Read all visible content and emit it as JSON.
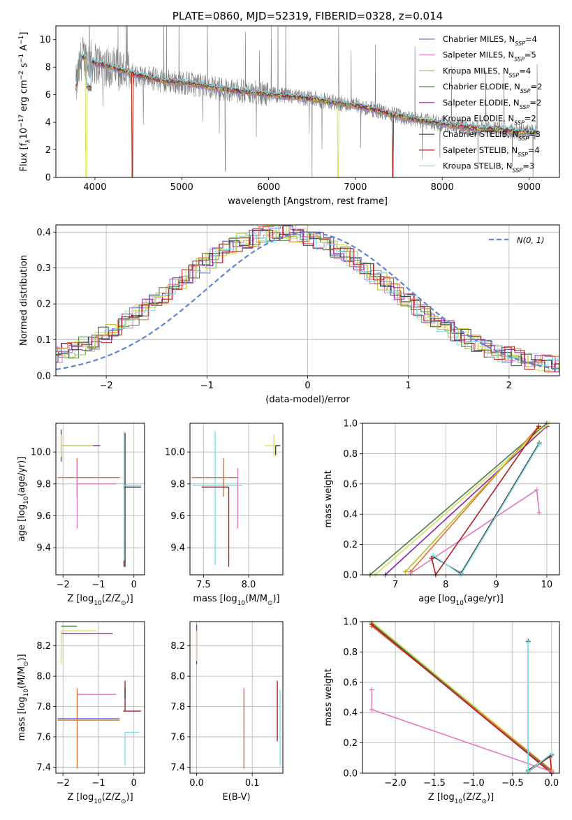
{
  "colors": {
    "chabrier_miles": "#6a7fd3",
    "salpeter_miles": "#e377c2",
    "kroupa_miles": "#bcbd22",
    "chabrier_elodie": "#4a7d4a",
    "salpeter_elodie": "#8e24aa",
    "kroupa_elodie": "#d4e157",
    "chabrier_stelib": "#404040",
    "salpeter_stelib": "#b71c1c",
    "kroupa_stelib": "#80deea",
    "orange": "#e07030",
    "data_gray": "#808080",
    "normal_dash": "#5b85d9"
  },
  "chart_data": [
    {
      "id": "spectrum",
      "type": "line",
      "title": "PLATE=0860, MJD=52319, FIBERID=0328, z=0.014",
      "xlabel": "wavelength [Angstrom, rest frame]",
      "ylabel_parts": {
        "a": "Flux [f",
        "sub1": "λ",
        "b": "10",
        "sup1": "−17",
        "c": " erg cm",
        "sup2": "−2",
        "d": " s",
        "sup3": "−1",
        "e": " A",
        "sup4": "−1",
        "f": "]"
      },
      "xlim": [
        3550,
        9350
      ],
      "ylim": [
        0,
        11
      ],
      "xticks": [
        4000,
        5000,
        6000,
        7000,
        8000,
        9000
      ],
      "yticks": [
        0,
        2,
        4,
        6,
        8,
        10
      ],
      "x_range_data": [
        3780,
        9100
      ],
      "grid": false,
      "legend_placement": "upper-right",
      "legend": [
        {
          "name": "Chabrier MILES, N",
          "sub": "SSP",
          "suffix": "=4",
          "color": "#6a7fd3"
        },
        {
          "name": "Salpeter MILES, N",
          "sub": "SSP",
          "suffix": "=5",
          "color": "#e377c2"
        },
        {
          "name": "Kroupa MILES, N",
          "sub": "SSP",
          "suffix": "=4",
          "color": "#bcbd22"
        },
        {
          "name": "Chabrier ELODIE, N",
          "sub": "SSP",
          "suffix": "=2",
          "color": "#4a7d4a"
        },
        {
          "name": "Salpeter ELODIE, N",
          "sub": "SSP",
          "suffix": "=2",
          "color": "#8e24aa"
        },
        {
          "name": "Kroupa ELODIE, N",
          "sub": "SSP",
          "suffix": "=2",
          "color": "#d4e157"
        },
        {
          "name": "Chabrier STELIB, N",
          "sub": "SSP",
          "suffix": "=3",
          "color": "#404040"
        },
        {
          "name": "Salpeter STELIB, N",
          "sub": "SSP",
          "suffix": "=4",
          "color": "#b71c1c"
        },
        {
          "name": "Kroupa STELIB, N",
          "sub": "SSP",
          "suffix": "=3",
          "color": "#80deea"
        }
      ],
      "continuum_points": [
        [
          3780,
          6.5
        ],
        [
          3850,
          8.8
        ],
        [
          4000,
          8.3
        ],
        [
          4200,
          8.0
        ],
        [
          4500,
          7.4
        ],
        [
          4800,
          7.0
        ],
        [
          5000,
          6.9
        ],
        [
          5300,
          6.6
        ],
        [
          5600,
          6.3
        ],
        [
          5900,
          6.1
        ],
        [
          6200,
          5.9
        ],
        [
          6500,
          5.7
        ],
        [
          6800,
          5.4
        ],
        [
          7100,
          5.1
        ],
        [
          7400,
          4.6
        ],
        [
          7700,
          4.2
        ],
        [
          8000,
          3.9
        ],
        [
          8300,
          3.6
        ],
        [
          8600,
          3.5
        ],
        [
          8900,
          3.3
        ],
        [
          9100,
          3.3
        ]
      ]
    },
    {
      "id": "residual-histogram",
      "type": "line",
      "xlabel": "(data-model)/error",
      "ylabel": "Normed distribution",
      "xlim": [
        -2.5,
        2.5
      ],
      "ylim": [
        0,
        0.42
      ],
      "xticks": [
        -2,
        -1,
        0,
        1,
        2
      ],
      "yticks": [
        0.0,
        0.1,
        0.2,
        0.3,
        0.4
      ],
      "grid": true,
      "legend_placement": "upper-right",
      "legend": [
        {
          "name": "N(0,1)",
          "color": "#5b85d9"
        }
      ],
      "normal_curve": {
        "mean": 0,
        "sigma": 1
      }
    },
    {
      "id": "age-vs-z",
      "type": "scatter",
      "xlabel_parts": {
        "a": "Z [log",
        "sub": "10",
        "b": "(Z/Z",
        "sub2": "⊙",
        "c": ")]"
      },
      "ylabel_parts": {
        "a": "age  [log",
        "sub": "10",
        "b": "(age/yr)]"
      },
      "xlim": [
        -2.2,
        0.3
      ],
      "ylim": [
        9.23,
        10.18
      ],
      "xticks": [
        -2,
        -1,
        0
      ],
      "yticks": [
        9.4,
        9.6,
        9.8,
        10.0
      ],
      "grid": true,
      "errorbars": [
        {
          "x": -2.05,
          "y": 10.04,
          "xerr": [
            0.0,
            1.1
          ],
          "yerr": [
            0.1,
            0.1
          ],
          "color": "#8e24aa"
        },
        {
          "x": -2.05,
          "y": 10.04,
          "xerr": [
            0.0,
            0.9
          ],
          "yerr": [
            0.07,
            0.07
          ],
          "color": "#d4e157"
        },
        {
          "x": -1.6,
          "y": 9.84,
          "xerr": [
            0.55,
            1.2
          ],
          "yerr": [
            0.12,
            0.12
          ],
          "color": "#e07030"
        },
        {
          "x": -1.6,
          "y": 9.8,
          "xerr": [
            0.0,
            1.1
          ],
          "yerr": [
            0.28,
            0.15
          ],
          "color": "#e377c2"
        },
        {
          "x": -0.25,
          "y": 9.78,
          "xerr": [
            0.05,
            0.45
          ],
          "yerr": [
            0.5,
            0.34
          ],
          "color": "#404040"
        },
        {
          "x": -0.28,
          "y": 9.79,
          "xerr": [
            0.0,
            0.5
          ],
          "yerr": [
            0.5,
            0.34
          ],
          "color": "#80deea"
        },
        {
          "x": -0.28,
          "y": 9.3,
          "xerr": [
            0.0,
            0.0
          ],
          "yerr": [
            0.02,
            0.02
          ],
          "color": "#b71c1c"
        }
      ]
    },
    {
      "id": "age-vs-mass",
      "type": "scatter",
      "xlabel_parts": {
        "a": "mass [log",
        "sub": "10",
        "b": "(M/M",
        "sub2": "⊙",
        "c": ")]"
      },
      "xlim": [
        7.35,
        8.38
      ],
      "ylim": [
        9.23,
        10.18
      ],
      "xticks": [
        7.5,
        8.0
      ],
      "yticks": [
        9.4,
        9.6,
        9.8,
        10.0
      ],
      "grid": true,
      "errorbars": [
        {
          "x": 8.28,
          "y": 10.04,
          "xerr": [
            0.1,
            0.08
          ],
          "yerr": [
            0.07,
            0.07
          ],
          "color": "#d4e157"
        },
        {
          "x": 8.3,
          "y": 10.04,
          "xerr": [
            0.0,
            0.05
          ],
          "yerr": [
            0.06,
            0.0
          ],
          "color": "#404040"
        },
        {
          "x": 7.63,
          "y": 9.79,
          "xerr": [
            0.25,
            0.3
          ],
          "yerr": [
            0.5,
            0.34
          ],
          "color": "#80deea"
        },
        {
          "x": 7.72,
          "y": 9.84,
          "xerr": [
            0.35,
            0.16
          ],
          "yerr": [
            0.12,
            0.12
          ],
          "color": "#e07030"
        },
        {
          "x": 7.78,
          "y": 9.78,
          "xerr": [
            0.3,
            0.0
          ],
          "yerr": [
            0.5,
            0.0
          ],
          "color": "#b71c1c"
        },
        {
          "x": 7.88,
          "y": 9.8,
          "xerr": [
            0.0,
            0.0
          ],
          "yerr": [
            0.28,
            0.1
          ],
          "color": "#e377c2"
        }
      ]
    },
    {
      "id": "mass-weight-vs-age",
      "type": "line",
      "xlabel_parts": {
        "a": "age  [log",
        "sub": "10",
        "b": "(age/yr)]"
      },
      "ylabel": "mass weight",
      "xlim": [
        6.35,
        10.25
      ],
      "ylim": [
        0,
        1.0
      ],
      "xticks": [
        7,
        8,
        9,
        10
      ],
      "yticks": [
        0.0,
        0.2,
        0.4,
        0.6,
        0.8,
        1.0
      ],
      "grid": true,
      "series": [
        {
          "color": "#4a7d4a",
          "points": [
            [
              6.5,
              0.0
            ],
            [
              10.0,
              1.0
            ]
          ]
        },
        {
          "color": "#8e24aa",
          "points": [
            [
              6.8,
              0.0
            ],
            [
              10.0,
              0.98
            ]
          ]
        },
        {
          "color": "#d4e157",
          "points": [
            [
              6.6,
              0.0
            ],
            [
              10.05,
              1.0
            ]
          ]
        },
        {
          "color": "#e07030",
          "points": [
            [
              7.3,
              0.02
            ],
            [
              9.84,
              0.98
            ]
          ]
        },
        {
          "color": "#bcbd22",
          "points": [
            [
              7.2,
              0.02
            ],
            [
              9.84,
              0.97
            ]
          ]
        },
        {
          "color": "#e377c2",
          "points": [
            [
              7.3,
              0.01
            ],
            [
              9.8,
              0.56
            ],
            [
              9.85,
              0.41
            ]
          ]
        },
        {
          "color": "#404040",
          "points": [
            [
              7.75,
              0.12
            ],
            [
              8.3,
              0.01
            ],
            [
              9.85,
              0.87
            ]
          ]
        },
        {
          "color": "#80deea",
          "points": [
            [
              7.75,
              0.13
            ],
            [
              8.3,
              0.0
            ],
            [
              9.85,
              0.86
            ]
          ]
        },
        {
          "color": "#b71c1c",
          "points": [
            [
              7.72,
              0.11
            ],
            [
              7.8,
              0.0
            ],
            [
              9.84,
              0.98
            ]
          ]
        }
      ]
    },
    {
      "id": "mass-vs-z",
      "type": "scatter",
      "xlabel_parts": {
        "a": "Z [log",
        "sub": "10",
        "b": "(Z/Z",
        "sub2": "⊙",
        "c": ")]"
      },
      "ylabel_parts": {
        "a": "mass [log",
        "sub": "10",
        "b": "(M/M",
        "sub2": "⊙",
        "c": ")]"
      },
      "xlim": [
        -2.2,
        0.3
      ],
      "ylim": [
        7.36,
        8.36
      ],
      "xticks": [
        -2,
        -1,
        0
      ],
      "yticks": [
        7.4,
        7.6,
        7.8,
        8.0,
        8.2
      ],
      "grid": true,
      "errorbars": [
        {
          "x": -2.05,
          "y": 8.33,
          "xerr": [
            0.0,
            0.45
          ],
          "yerr": [
            0.0,
            0.0
          ],
          "color": "#4a7d4a"
        },
        {
          "x": -2.05,
          "y": 8.28,
          "xerr": [
            0.0,
            1.45
          ],
          "yerr": [
            0.0,
            0.0
          ],
          "color": "#8e24aa"
        },
        {
          "x": -2.05,
          "y": 8.3,
          "xerr": [
            0.0,
            1.0
          ],
          "yerr": [
            0.22,
            0.0
          ],
          "color": "#d4e157"
        },
        {
          "x": -1.6,
          "y": 7.88,
          "xerr": [
            0.0,
            1.1
          ],
          "yerr": [
            0.0,
            0.0
          ],
          "color": "#e377c2"
        },
        {
          "x": -1.6,
          "y": 7.71,
          "xerr": [
            0.55,
            1.2
          ],
          "yerr": [
            0.32,
            0.21
          ],
          "color": "#e07030"
        },
        {
          "x": -1.6,
          "y": 7.72,
          "xerr": [
            0.55,
            1.2
          ],
          "yerr": [
            0.0,
            0.0
          ],
          "color": "#6a7fd3"
        },
        {
          "x": -0.25,
          "y": 7.77,
          "xerr": [
            0.05,
            0.45
          ],
          "yerr": [
            0.0,
            0.2
          ],
          "color": "#b71c1c"
        },
        {
          "x": -0.25,
          "y": 7.63,
          "xerr": [
            0.0,
            0.4
          ],
          "yerr": [
            0.22,
            0.0
          ],
          "color": "#80deea"
        },
        {
          "x": -0.25,
          "y": 7.85,
          "xerr": [
            0.0,
            0.0
          ],
          "yerr": [
            0.0,
            0.07
          ],
          "color": "#404040"
        }
      ]
    },
    {
      "id": "mass-vs-ebv",
      "type": "scatter",
      "xlabel": "E(B-V)",
      "xlim": [
        -0.012,
        0.155
      ],
      "ylim": [
        7.36,
        8.36
      ],
      "xticks": [
        0.0,
        0.1
      ],
      "yticks": [
        7.4,
        7.6,
        7.8,
        8.0,
        8.2
      ],
      "grid": true,
      "errorbars": [
        {
          "x": 0.0,
          "y": 8.3,
          "xerr": [
            0.0,
            0.0
          ],
          "yerr": [
            0.22,
            0.04
          ],
          "color": "#8e24aa"
        },
        {
          "x": 0.0,
          "y": 8.3,
          "xerr": [
            0.0,
            0.0
          ],
          "yerr": [
            0.2,
            0.0
          ],
          "color": "#d4e157"
        },
        {
          "x": 0.085,
          "y": 7.71,
          "xerr": [
            0.0,
            0.0
          ],
          "yerr": [
            0.32,
            0.21
          ],
          "color": "#e07030"
        },
        {
          "x": 0.145,
          "y": 7.77,
          "xerr": [
            0.0,
            0.0
          ],
          "yerr": [
            0.2,
            0.2
          ],
          "color": "#b71c1c"
        },
        {
          "x": 0.15,
          "y": 7.63,
          "xerr": [
            0.0,
            0.0
          ],
          "yerr": [
            0.22,
            0.28
          ],
          "color": "#80deea"
        }
      ]
    },
    {
      "id": "mass-weight-vs-z",
      "type": "line",
      "xlabel_parts": {
        "a": "Z [log",
        "sub": "10",
        "b": "(Z/Z",
        "sub2": "⊙",
        "c": ")]"
      },
      "ylabel": "mass weight",
      "xlim": [
        -2.42,
        0.1
      ],
      "ylim": [
        0,
        1.0
      ],
      "xticks": [
        -2.0,
        -1.5,
        -1.0,
        -0.5,
        0.0
      ],
      "xtick_labels": [
        "−2.0",
        "−1.5",
        "−1.0",
        "−0.5",
        "0.0"
      ],
      "yticks": [
        0.0,
        0.2,
        0.4,
        0.6,
        0.8,
        1.0
      ],
      "grid": true,
      "series": [
        {
          "color": "#4a7d4a",
          "points": [
            [
              -2.3,
              0.99
            ],
            [
              0.0,
              0.01
            ]
          ]
        },
        {
          "color": "#d4e157",
          "points": [
            [
              -2.3,
              1.0
            ],
            [
              0.0,
              0.02
            ]
          ]
        },
        {
          "color": "#8e24aa",
          "points": [
            [
              -2.3,
              0.98
            ],
            [
              0.0,
              0.0
            ]
          ]
        },
        {
          "color": "#e07030",
          "points": [
            [
              -2.3,
              0.97
            ],
            [
              0.0,
              0.02
            ]
          ]
        },
        {
          "color": "#b71c1c",
          "points": [
            [
              -2.3,
              0.98
            ],
            [
              0.0,
              0.0
            ],
            [
              -0.02,
              0.11
            ],
            [
              -0.3,
              0.01
            ]
          ]
        },
        {
          "color": "#e377c2",
          "points": [
            [
              -2.3,
              0.55
            ],
            [
              -2.3,
              0.42
            ],
            [
              0.0,
              0.01
            ]
          ]
        },
        {
          "color": "#404040",
          "points": [
            [
              -0.3,
              0.87
            ],
            [
              -0.3,
              0.02
            ],
            [
              0.0,
              0.12
            ]
          ]
        },
        {
          "color": "#80deea",
          "points": [
            [
              -0.3,
              0.86
            ],
            [
              -0.3,
              0.01
            ],
            [
              0.0,
              0.13
            ]
          ]
        }
      ]
    }
  ]
}
